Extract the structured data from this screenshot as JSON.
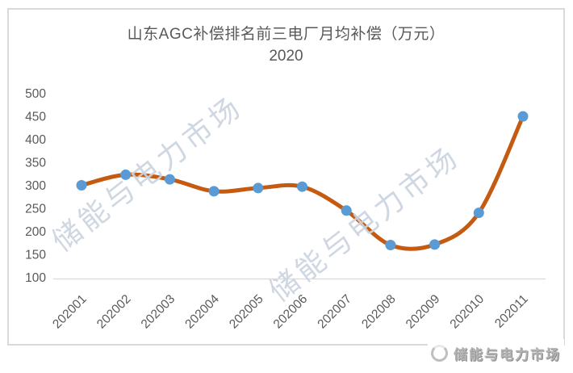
{
  "chart": {
    "watermark_text": "储能与电力市场",
    "logo_text": "储能与电力市场",
    "colors": {
      "line": "#C55A11",
      "marker": "#5B9BD5",
      "title": "#595959",
      "axis_text": "#595959",
      "frame_border": "#D9D9D9",
      "axis_line": "#D9D9D9",
      "watermark": "#CCD4E0",
      "logo_text_color": "#B3B3B3"
    }
  },
  "chart_data": {
    "type": "line",
    "smooth": true,
    "title": "山东AGC补偿排名前三电厂月均补偿（万元）",
    "subtitle": "2020",
    "categories": [
      "202001",
      "202002",
      "202003",
      "202004",
      "202005",
      "202006",
      "202007",
      "202008",
      "202009",
      "202010",
      "202011"
    ],
    "values": [
      300,
      323,
      313,
      287,
      294,
      297,
      245,
      170,
      171,
      240,
      450
    ],
    "xlabel": "",
    "ylabel": "",
    "ylim": [
      100,
      500
    ],
    "ytick_step": 50,
    "ytick_labels": [
      "100",
      "150",
      "200",
      "250",
      "300",
      "350",
      "400",
      "450",
      "500"
    ],
    "grid": false,
    "legend_visible": false,
    "x_label_rotation_deg": -45
  }
}
